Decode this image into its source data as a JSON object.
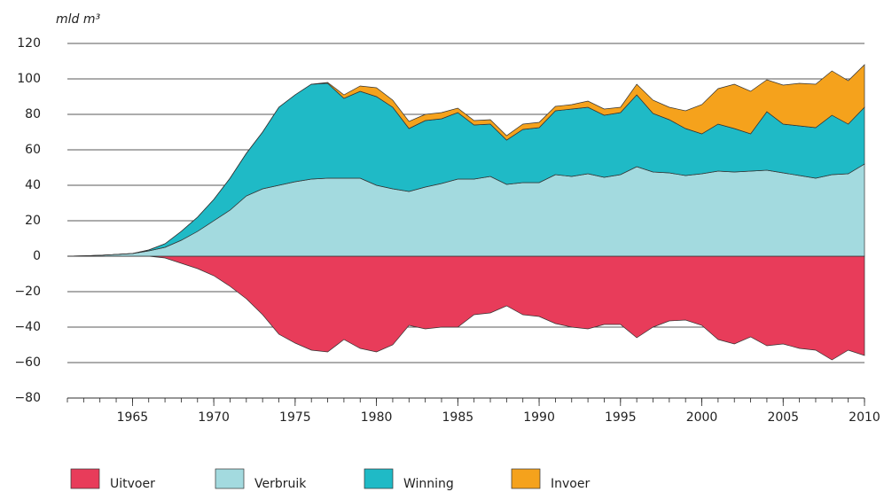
{
  "chart_data": {
    "type": "stacked_area",
    "y_label": "mld m³",
    "x": [
      1961,
      1962,
      1963,
      1964,
      1965,
      1966,
      1967,
      1968,
      1969,
      1970,
      1971,
      1972,
      1973,
      1974,
      1975,
      1976,
      1977,
      1978,
      1979,
      1980,
      1981,
      1982,
      1983,
      1984,
      1985,
      1986,
      1987,
      1988,
      1989,
      1990,
      1991,
      1992,
      1993,
      1994,
      1995,
      1996,
      1997,
      1998,
      1999,
      2000,
      2001,
      2002,
      2003,
      2004,
      2005,
      2006,
      2007,
      2008,
      2009,
      2010
    ],
    "series": [
      {
        "name": "Uitvoer",
        "color": "#e83c5a",
        "values": [
          0,
          0,
          0,
          0,
          0,
          0,
          -1,
          -4,
          -7,
          -11,
          -17,
          -24,
          -33,
          -44,
          -49,
          -53,
          -54,
          -47,
          -52,
          -54,
          -50,
          -39,
          -41,
          -40,
          -40,
          -33,
          -32,
          -28,
          -33,
          -34,
          -38,
          -40,
          -41,
          -38.5,
          -38.5,
          -46,
          -40,
          -36.5,
          -36,
          -39,
          -47,
          -49.5,
          -45.5,
          -50.5,
          -49.5,
          -52,
          -53,
          -58.5,
          -53,
          -56
        ]
      },
      {
        "name": "Verbruik",
        "color": "#a3dadf",
        "values": [
          0,
          0.2,
          0.5,
          1,
          1.5,
          3,
          5,
          9,
          14,
          20,
          26,
          34,
          38,
          40,
          42,
          43.5,
          44,
          44,
          44,
          40,
          38,
          36.5,
          39,
          41,
          43.5,
          43.5,
          45,
          40.5,
          41.5,
          41.5,
          46,
          45,
          46.5,
          44.5,
          46,
          50.5,
          47.5,
          47,
          45.5,
          46.5,
          48,
          47.5,
          48,
          48.5,
          47,
          45.5,
          44,
          46,
          46.5,
          52
        ]
      },
      {
        "name": "Winning",
        "color": "#1fbac6",
        "values": [
          0,
          0,
          0,
          0,
          0,
          0.5,
          2,
          5,
          8,
          12,
          18,
          24,
          32,
          44,
          49,
          53.5,
          53.5,
          45,
          49,
          50,
          46,
          35.5,
          37.5,
          36.5,
          37.5,
          30.5,
          29.5,
          25,
          30,
          31,
          36,
          38,
          37.5,
          35,
          35,
          40.5,
          33,
          30,
          26.5,
          22.5,
          26.5,
          24.5,
          21,
          33,
          27.5,
          28,
          28.5,
          33.5,
          28,
          32
        ]
      },
      {
        "name": "Invoer",
        "color": "#f5a21c",
        "values": [
          0,
          0,
          0,
          0,
          0,
          0,
          0,
          0,
          0,
          0,
          0,
          0,
          0,
          0,
          0,
          0,
          0.5,
          2,
          3,
          5,
          4,
          4,
          3.5,
          3.5,
          2.5,
          2.5,
          2.5,
          2.5,
          3,
          3,
          2.5,
          2.5,
          3.5,
          3.5,
          3,
          6,
          7.5,
          7,
          10,
          16.5,
          20,
          25,
          24,
          18,
          22,
          24,
          24.5,
          25,
          24.5,
          24
        ]
      }
    ],
    "xlim": [
      1961,
      2010
    ],
    "xticks": [
      1965,
      1970,
      1975,
      1980,
      1985,
      1990,
      1995,
      2000,
      2005,
      2010
    ],
    "ylim": [
      -80,
      120
    ],
    "yticks": [
      {
        "value": -80,
        "label": "−80"
      },
      {
        "value": -60,
        "label": "−60"
      },
      {
        "value": -40,
        "label": "−40"
      },
      {
        "value": -20,
        "label": "−20"
      },
      0,
      20,
      40,
      60,
      80,
      100,
      120
    ],
    "grid": true
  }
}
